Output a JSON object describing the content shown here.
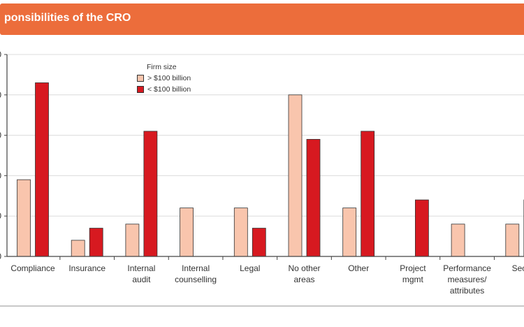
{
  "title": "ponsibilities of the CRO",
  "chart_data": {
    "type": "bar",
    "title": "ponsibilities of the CRO",
    "xlabel": "",
    "ylabel": "",
    "ylim": [
      0,
      50
    ],
    "yticks": [
      0,
      10,
      20,
      30,
      40,
      50
    ],
    "ytick_labels": [
      "0",
      "0",
      "0",
      "0",
      "0",
      "0"
    ],
    "grid": true,
    "legend_title": "Firm size",
    "legend_position": "top-left",
    "categories": [
      [
        "Compliance"
      ],
      [
        "Insurance"
      ],
      [
        "Internal",
        "audit"
      ],
      [
        "Internal",
        "counselling"
      ],
      [
        "Legal"
      ],
      [
        "No other",
        "areas"
      ],
      [
        "Other"
      ],
      [
        "Project",
        "mgmt"
      ],
      [
        "Performance",
        "measures/",
        "attributes"
      ],
      [
        "Secu"
      ]
    ],
    "series": [
      {
        "name": "> $100 billion",
        "color": "#f9c5ad",
        "values": [
          19,
          4,
          8,
          12,
          12,
          40,
          12,
          0,
          8,
          8
        ]
      },
      {
        "name": "< $100 billion",
        "color": "#d71920",
        "values": [
          43,
          7,
          31,
          0,
          7,
          29,
          31,
          14,
          0,
          14
        ]
      }
    ]
  }
}
